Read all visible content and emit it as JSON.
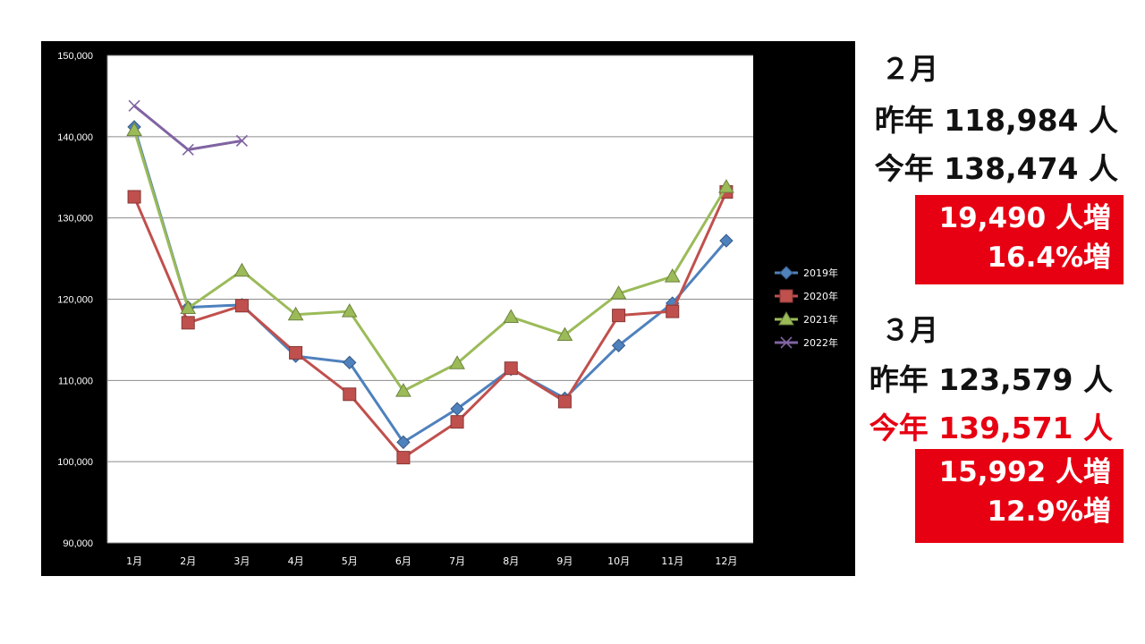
{
  "chart_data": {
    "type": "line",
    "categories": [
      "1月",
      "2月",
      "3月",
      "4月",
      "5月",
      "6月",
      "7月",
      "8月",
      "9月",
      "10月",
      "11月",
      "12月"
    ],
    "ylim": [
      90000,
      150000
    ],
    "y_ticks": [
      "90,000",
      "100,000",
      "110,000",
      "120,000",
      "130,000",
      "140,000",
      "150,000"
    ],
    "grid": true,
    "legend_position": "right",
    "series": [
      {
        "name": "2019年",
        "color": "#4f81bd",
        "marker": "diamond",
        "values": [
          141200,
          119000,
          119300,
          113000,
          112200,
          102400,
          106500,
          111400,
          107800,
          114300,
          119500,
          127200
        ]
      },
      {
        "name": "2020年",
        "color": "#c0504d",
        "marker": "square",
        "values": [
          132600,
          117100,
          119200,
          113400,
          108300,
          100500,
          104900,
          111500,
          107400,
          118000,
          118500,
          133200
        ]
      },
      {
        "name": "2021年",
        "color": "#9bbb59",
        "marker": "triangle",
        "values": [
          140800,
          118900,
          123500,
          118100,
          118500,
          108700,
          112100,
          117800,
          115600,
          120700,
          122800,
          133800
        ]
      },
      {
        "name": "2022年",
        "color": "#8064a2",
        "marker": "x",
        "values": [
          143800,
          138400,
          139500,
          null,
          null,
          null,
          null,
          null,
          null,
          null,
          null,
          null
        ]
      }
    ]
  },
  "panel": {
    "feb": {
      "heading": "２月",
      "last_year": "昨年 118,984 人",
      "this_year": "今年 138,474 人",
      "diff_count": "19,490 人増",
      "diff_pct": "16.4%増"
    },
    "mar": {
      "heading": "３月",
      "last_year": "昨年 123,579 人",
      "this_year": "今年 139,571 人",
      "diff_count": "15,992 人増",
      "diff_pct": "12.9%増"
    },
    "colors": {
      "highlight": "#e60012",
      "text": "#111111"
    }
  }
}
